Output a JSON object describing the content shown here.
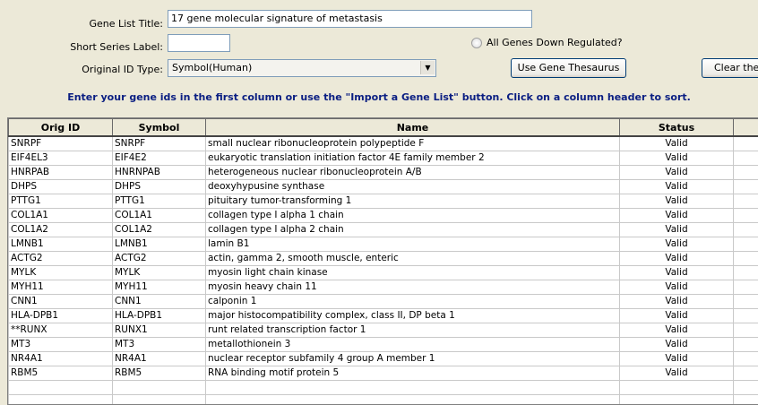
{
  "form": {
    "gene_list_title_label": "Gene List Title:",
    "gene_list_title_value": "17 gene molecular signature of metastasis",
    "short_series_label": "Short Series Label:",
    "short_series_value": "",
    "original_id_type_label": "Original ID Type:",
    "original_id_type_value": "Symbol(Human)",
    "all_genes_down_label": "All Genes Down Regulated?",
    "use_gene_thesaurus_label": "Use Gene Thesaurus",
    "clear_label": "Clear the G"
  },
  "instructions": "Enter your gene ids in the first column or use the \"Import a Gene List\" button.  Click on a column header to sort.",
  "table": {
    "columns": [
      "Orig ID",
      "Symbol",
      "Name",
      "Status"
    ],
    "rows": [
      [
        "SNRPF",
        "SNRPF",
        "small nuclear ribonucleoprotein polypeptide F",
        "Valid"
      ],
      [
        "EIF4EL3",
        "EIF4E2",
        "eukaryotic translation initiation factor 4E family member 2",
        "Valid"
      ],
      [
        "HNRPAB",
        "HNRNPAB",
        "heterogeneous nuclear ribonucleoprotein A/B",
        "Valid"
      ],
      [
        "DHPS",
        "DHPS",
        "deoxyhypusine synthase",
        "Valid"
      ],
      [
        "PTTG1",
        "PTTG1",
        "pituitary tumor-transforming 1",
        "Valid"
      ],
      [
        "COL1A1",
        "COL1A1",
        "collagen type I alpha 1 chain",
        "Valid"
      ],
      [
        "COL1A2",
        "COL1A2",
        "collagen type I alpha 2 chain",
        "Valid"
      ],
      [
        "LMNB1",
        "LMNB1",
        "lamin B1",
        "Valid"
      ],
      [
        "ACTG2",
        "ACTG2",
        "actin, gamma 2, smooth muscle, enteric",
        "Valid"
      ],
      [
        "MYLK",
        "MYLK",
        "myosin light chain kinase",
        "Valid"
      ],
      [
        "MYH11",
        "MYH11",
        "myosin heavy chain 11",
        "Valid"
      ],
      [
        "CNN1",
        "CNN1",
        "calponin 1",
        "Valid"
      ],
      [
        "HLA-DPB1",
        "HLA-DPB1",
        "major histocompatibility complex, class II, DP beta 1",
        "Valid"
      ],
      [
        "**RUNX",
        "RUNX1",
        "runt related transcription factor 1",
        "Valid"
      ],
      [
        "MT3",
        "MT3",
        "metallothionein 3",
        "Valid"
      ],
      [
        "NR4A1",
        "NR4A1",
        "nuclear receptor subfamily 4 group A member 1",
        "Valid"
      ],
      [
        "RBM5",
        "RBM5",
        "RNA binding motif protein 5",
        "Valid"
      ],
      [
        "",
        "",
        "",
        ""
      ],
      [
        "",
        "",
        "",
        ""
      ]
    ]
  }
}
